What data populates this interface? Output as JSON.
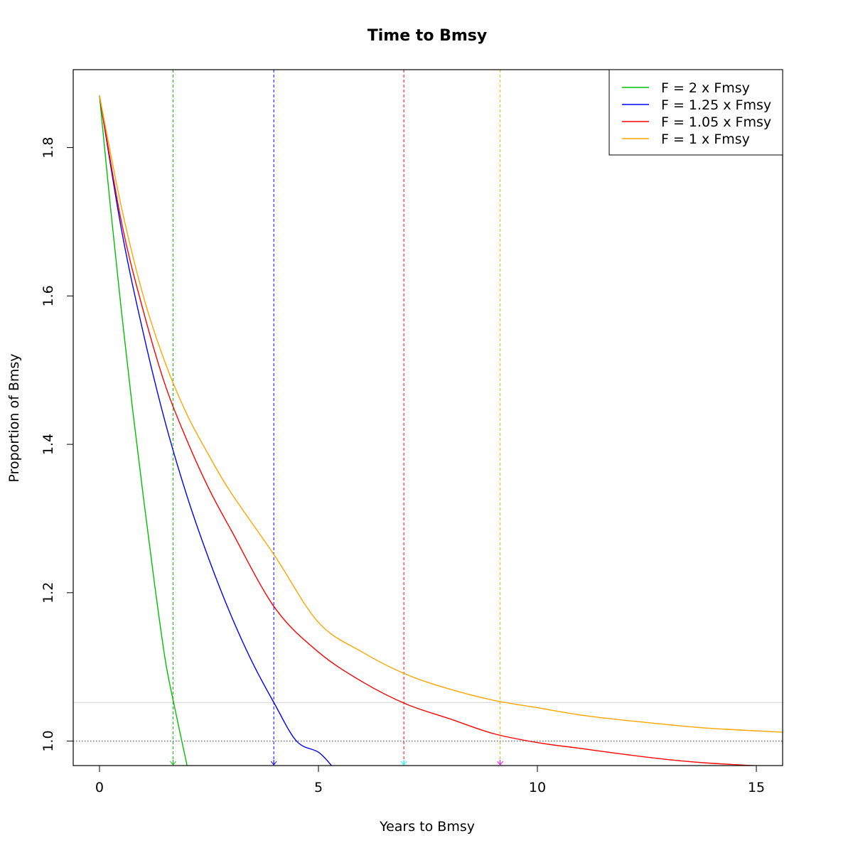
{
  "chart_data": {
    "type": "line",
    "title": "Time to Bmsy",
    "xlabel": "Years to Bmsy",
    "ylabel": "Proportion of Bmsy",
    "xlim": [
      -0.6,
      15.6
    ],
    "ylim": [
      0.967,
      1.905
    ],
    "x_ticks": [
      0,
      5,
      10,
      15
    ],
    "x_tick_labels": [
      "0",
      "5",
      "10",
      "15"
    ],
    "y_ticks": [
      1.0,
      1.2,
      1.4,
      1.6,
      1.8
    ],
    "y_tick_labels": [
      "1.0",
      "1.2",
      "1.4",
      "1.6",
      "1.8"
    ],
    "grid": false,
    "legend_position": "top-right",
    "start_value": 1.87,
    "series": [
      {
        "name": "F = 2 x Fmsy",
        "color": "#00c000",
        "x": [
          0,
          0.25,
          0.5,
          0.75,
          1.0,
          1.25,
          1.5,
          1.7,
          2.0
        ],
        "values": [
          1.87,
          1.72,
          1.58,
          1.45,
          1.33,
          1.215,
          1.11,
          1.05,
          0.967
        ],
        "time_to_bmsy": 1.68
      },
      {
        "name": "F = 1.25 x Fmsy",
        "color": "#0000ff",
        "x": [
          0,
          0.5,
          1.0,
          1.5,
          2.0,
          2.5,
          3.0,
          3.5,
          4.0,
          4.5,
          5.0,
          5.3
        ],
        "values": [
          1.87,
          1.69,
          1.55,
          1.43,
          1.33,
          1.245,
          1.17,
          1.105,
          1.05,
          1.0,
          0.985,
          0.967
        ],
        "time_to_bmsy": 3.98
      },
      {
        "name": "F = 1.05 x Fmsy",
        "color": "#ff0000",
        "x": [
          0,
          0.5,
          1,
          1.5,
          2,
          2.5,
          3,
          4,
          5,
          6,
          7,
          8,
          9,
          10,
          11,
          12,
          13,
          14,
          15.6
        ],
        "values": [
          1.87,
          1.7,
          1.58,
          1.48,
          1.405,
          1.34,
          1.285,
          1.18,
          1.12,
          1.08,
          1.05,
          1.03,
          1.01,
          0.998,
          0.99,
          0.982,
          0.975,
          0.97,
          0.965
        ],
        "time_to_bmsy": 6.95
      },
      {
        "name": "F = 1 x Fmsy",
        "color": "#ffa500",
        "x": [
          0,
          0.5,
          1,
          1.5,
          2,
          2.5,
          3,
          4,
          5,
          6,
          7,
          8,
          9,
          10,
          11,
          12,
          13,
          14,
          15.6
        ],
        "values": [
          1.87,
          1.72,
          1.6,
          1.51,
          1.44,
          1.385,
          1.335,
          1.25,
          1.16,
          1.12,
          1.09,
          1.07,
          1.055,
          1.045,
          1.035,
          1.028,
          1.022,
          1.017,
          1.012
        ],
        "time_to_bmsy": 9.15
      }
    ],
    "reference_lines": {
      "bmsy": 1.0,
      "threshold": 1.052,
      "threshold_color": "#d3d3d3"
    },
    "marker_colors": [
      "#00c000",
      "#0000ff",
      "#00ffff",
      "#ff00ff"
    ]
  }
}
